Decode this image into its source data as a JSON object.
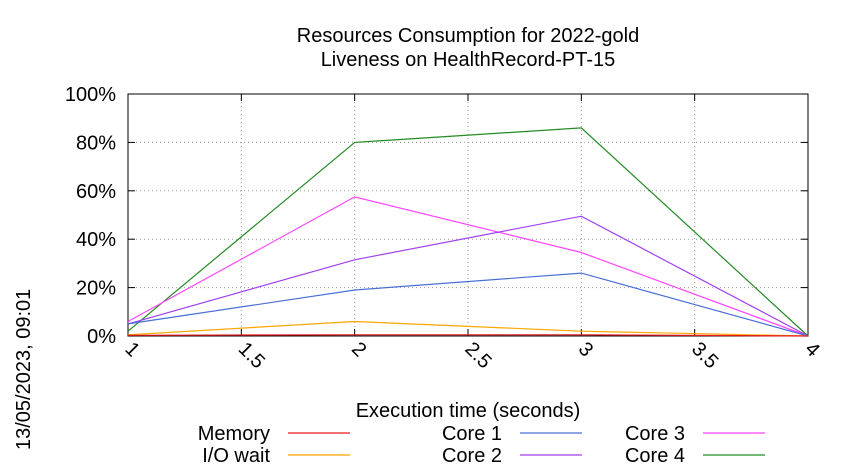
{
  "side_stamp": "13/05/2023, 09:01",
  "chart_data": {
    "type": "line",
    "title": [
      "Resources Consumption for 2022-gold",
      "Liveness on HealthRecord-PT-15"
    ],
    "xlabel": "Execution time (seconds)",
    "ylabel": "",
    "xlim": [
      1,
      4
    ],
    "ylim": [
      0,
      100
    ],
    "x_ticks": [
      "1",
      "1.5",
      "2",
      "2.5",
      "3",
      "3.5",
      "4"
    ],
    "x_tick_values": [
      1,
      1.5,
      2,
      2.5,
      3,
      3.5,
      4
    ],
    "y_ticks": [
      "0%",
      "20%",
      "40%",
      "60%",
      "80%",
      "100%"
    ],
    "y_tick_values": [
      0,
      20,
      40,
      60,
      80,
      100
    ],
    "grid": true,
    "legend_position": "bottom",
    "series": [
      {
        "name": "Memory",
        "color": "#e41a1c",
        "x": [
          1,
          2,
          3,
          4
        ],
        "y": [
          0.3,
          0.5,
          0.5,
          0
        ]
      },
      {
        "name": "I/O wait",
        "color": "#ffa500",
        "x": [
          1,
          2,
          3,
          4
        ],
        "y": [
          0.5,
          6.0,
          2.0,
          0
        ]
      },
      {
        "name": "Core 1",
        "color": "#4a6fd8",
        "x": [
          1,
          2,
          3,
          4
        ],
        "y": [
          5.0,
          19.0,
          26.0,
          0
        ]
      },
      {
        "name": "Core 2",
        "color": "#a040f0",
        "x": [
          1,
          2,
          3,
          4
        ],
        "y": [
          5.0,
          31.5,
          49.5,
          0
        ]
      },
      {
        "name": "Core 3",
        "color": "#ff44ff",
        "x": [
          1,
          2,
          3,
          4
        ],
        "y": [
          6.0,
          57.5,
          34.5,
          0
        ]
      },
      {
        "name": "Core 4",
        "color": "#228b22",
        "x": [
          1,
          2,
          3,
          4
        ],
        "y": [
          2.0,
          80.0,
          86.0,
          0
        ]
      }
    ]
  }
}
